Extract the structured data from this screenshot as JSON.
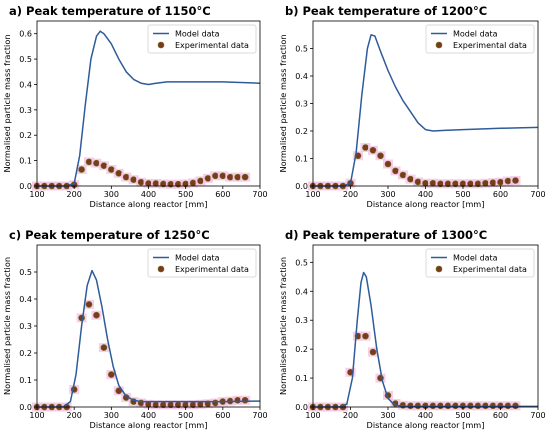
{
  "chart_data": [
    {
      "type": "line",
      "title": "a) Peak temperature of 1150°C",
      "xlabel": "Distance along reactor [mm]",
      "ylabel": "Normalised particle mass fraction",
      "xlim": [
        100,
        700
      ],
      "ylim": [
        0,
        0.65
      ],
      "xticks": [
        100,
        200,
        300,
        400,
        500,
        600,
        700
      ],
      "yticks": [
        0.0,
        0.1,
        0.2,
        0.3,
        0.4,
        0.5,
        0.6
      ],
      "ytick_labels": [
        "0.0",
        "0.1",
        "0.2",
        "0.3",
        "0.4",
        "0.5",
        "0.6"
      ],
      "grid": false,
      "legend_position": "top-right",
      "series": [
        {
          "name": "Model data",
          "kind": "line",
          "color": "#2e5b9a",
          "x": [
            100,
            180,
            200,
            215,
            230,
            245,
            260,
            270,
            280,
            300,
            320,
            340,
            360,
            380,
            400,
            420,
            450,
            500,
            600,
            700
          ],
          "y": [
            0,
            0,
            0.01,
            0.12,
            0.32,
            0.5,
            0.59,
            0.61,
            0.6,
            0.56,
            0.5,
            0.45,
            0.42,
            0.405,
            0.4,
            0.405,
            0.41,
            0.41,
            0.41,
            0.405
          ]
        },
        {
          "name": "Experimental data",
          "kind": "scatter",
          "color": "#7a3b1a",
          "x": [
            100,
            120,
            140,
            160,
            180,
            200,
            220,
            240,
            260,
            280,
            300,
            320,
            340,
            360,
            380,
            400,
            420,
            440,
            460,
            480,
            500,
            520,
            540,
            560,
            580,
            600,
            620,
            640,
            660
          ],
          "y": [
            0,
            0,
            0,
            0,
            0,
            0.005,
            0.065,
            0.095,
            0.09,
            0.08,
            0.065,
            0.05,
            0.035,
            0.025,
            0.015,
            0.01,
            0.01,
            0.008,
            0.007,
            0.007,
            0.008,
            0.012,
            0.02,
            0.03,
            0.04,
            0.04,
            0.035,
            0.035,
            0.035
          ]
        }
      ]
    },
    {
      "type": "line",
      "title": "b) Peak temperature of 1200°C",
      "xlabel": "Distance along reactor [mm]",
      "ylabel": "Normalised particle mass fraction",
      "xlim": [
        100,
        700
      ],
      "ylim": [
        0,
        0.6
      ],
      "xticks": [
        100,
        200,
        300,
        400,
        500,
        600,
        700
      ],
      "yticks": [
        0.0,
        0.1,
        0.2,
        0.3,
        0.4,
        0.5
      ],
      "ytick_labels": [
        "0.0",
        "0.1",
        "0.2",
        "0.3",
        "0.4",
        "0.5"
      ],
      "grid": false,
      "legend_position": "top-right",
      "series": [
        {
          "name": "Model data",
          "kind": "line",
          "color": "#2e5b9a",
          "x": [
            100,
            180,
            200,
            215,
            230,
            245,
            255,
            265,
            280,
            300,
            320,
            340,
            360,
            380,
            400,
            420,
            450,
            500,
            600,
            700
          ],
          "y": [
            0,
            0,
            0.01,
            0.12,
            0.33,
            0.5,
            0.55,
            0.545,
            0.49,
            0.42,
            0.36,
            0.31,
            0.27,
            0.23,
            0.205,
            0.2,
            0.202,
            0.205,
            0.21,
            0.213
          ]
        },
        {
          "name": "Experimental data",
          "kind": "scatter",
          "color": "#7a3b1a",
          "x": [
            100,
            120,
            140,
            160,
            180,
            200,
            220,
            240,
            260,
            280,
            300,
            320,
            340,
            360,
            380,
            400,
            420,
            440,
            460,
            480,
            500,
            520,
            540,
            560,
            580,
            600,
            620,
            640
          ],
          "y": [
            0,
            0,
            0,
            0,
            0,
            0.01,
            0.11,
            0.14,
            0.13,
            0.11,
            0.08,
            0.055,
            0.04,
            0.025,
            0.015,
            0.01,
            0.01,
            0.008,
            0.008,
            0.008,
            0.008,
            0.008,
            0.008,
            0.01,
            0.012,
            0.014,
            0.018,
            0.02
          ]
        }
      ]
    },
    {
      "type": "line",
      "title": "c) Peak temperature of 1250°C",
      "xlabel": "Distance along reactor [mm]",
      "ylabel": "Normalised particle mass fraction",
      "xlim": [
        100,
        700
      ],
      "ylim": [
        0,
        0.6
      ],
      "xticks": [
        100,
        200,
        300,
        400,
        500,
        600,
        700
      ],
      "yticks": [
        0.0,
        0.1,
        0.2,
        0.3,
        0.4,
        0.5
      ],
      "ytick_labels": [
        "0.0",
        "0.1",
        "0.2",
        "0.3",
        "0.4",
        "0.5"
      ],
      "grid": false,
      "legend_position": "top-right",
      "series": [
        {
          "name": "Model data",
          "kind": "line",
          "color": "#2e5b9a",
          "x": [
            100,
            170,
            190,
            205,
            220,
            235,
            248,
            260,
            275,
            290,
            305,
            320,
            340,
            360,
            380,
            400,
            450,
            500,
            600,
            700
          ],
          "y": [
            0,
            0,
            0.02,
            0.12,
            0.3,
            0.45,
            0.505,
            0.47,
            0.37,
            0.25,
            0.15,
            0.08,
            0.04,
            0.025,
            0.02,
            0.02,
            0.02,
            0.02,
            0.02,
            0.022
          ]
        },
        {
          "name": "Experimental data",
          "kind": "scatter",
          "color": "#7a3b1a",
          "x": [
            100,
            120,
            140,
            160,
            180,
            200,
            220,
            240,
            260,
            280,
            300,
            320,
            340,
            360,
            380,
            400,
            420,
            440,
            460,
            480,
            500,
            520,
            540,
            560,
            580,
            600,
            620,
            640,
            660
          ],
          "y": [
            0,
            0,
            0,
            0,
            0,
            0.065,
            0.33,
            0.38,
            0.34,
            0.22,
            0.12,
            0.06,
            0.035,
            0.02,
            0.015,
            0.01,
            0.008,
            0.008,
            0.008,
            0.008,
            0.008,
            0.008,
            0.01,
            0.012,
            0.015,
            0.02,
            0.022,
            0.025,
            0.025
          ]
        }
      ]
    },
    {
      "type": "line",
      "title": "d) Peak temperature of 1300°C",
      "xlabel": "Distance along reactor [mm]",
      "ylabel": "Normalised particle mass fraction",
      "xlim": [
        100,
        700
      ],
      "ylim": [
        0,
        0.56
      ],
      "xticks": [
        100,
        200,
        300,
        400,
        500,
        600,
        700
      ],
      "yticks": [
        0.0,
        0.1,
        0.2,
        0.3,
        0.4,
        0.5
      ],
      "ytick_labels": [
        "0.0",
        "0.1",
        "0.2",
        "0.3",
        "0.4",
        "0.5"
      ],
      "grid": false,
      "legend_position": "top-right",
      "series": [
        {
          "name": "Model data",
          "kind": "line",
          "color": "#2e5b9a",
          "x": [
            100,
            170,
            190,
            205,
            218,
            228,
            235,
            242,
            255,
            270,
            285,
            300,
            315,
            330,
            350,
            400,
            500,
            600,
            700
          ],
          "y": [
            0,
            0,
            0.01,
            0.1,
            0.3,
            0.43,
            0.465,
            0.45,
            0.35,
            0.2,
            0.09,
            0.03,
            0.01,
            0.004,
            0.002,
            0.002,
            0.002,
            0.002,
            0.002
          ]
        },
        {
          "name": "Experimental data",
          "kind": "scatter",
          "color": "#7a3b1a",
          "x": [
            100,
            120,
            140,
            160,
            180,
            200,
            220,
            240,
            260,
            280,
            300,
            320,
            340,
            360,
            380,
            400,
            420,
            440,
            460,
            480,
            500,
            520,
            540,
            560,
            580,
            600,
            620,
            640
          ],
          "y": [
            0,
            0,
            0,
            0,
            0,
            0.12,
            0.245,
            0.245,
            0.19,
            0.1,
            0.04,
            0.012,
            0.006,
            0.004,
            0.004,
            0.004,
            0.004,
            0.004,
            0.004,
            0.004,
            0.004,
            0.004,
            0.004,
            0.004,
            0.004,
            0.004,
            0.004,
            0.004
          ]
        }
      ]
    }
  ]
}
